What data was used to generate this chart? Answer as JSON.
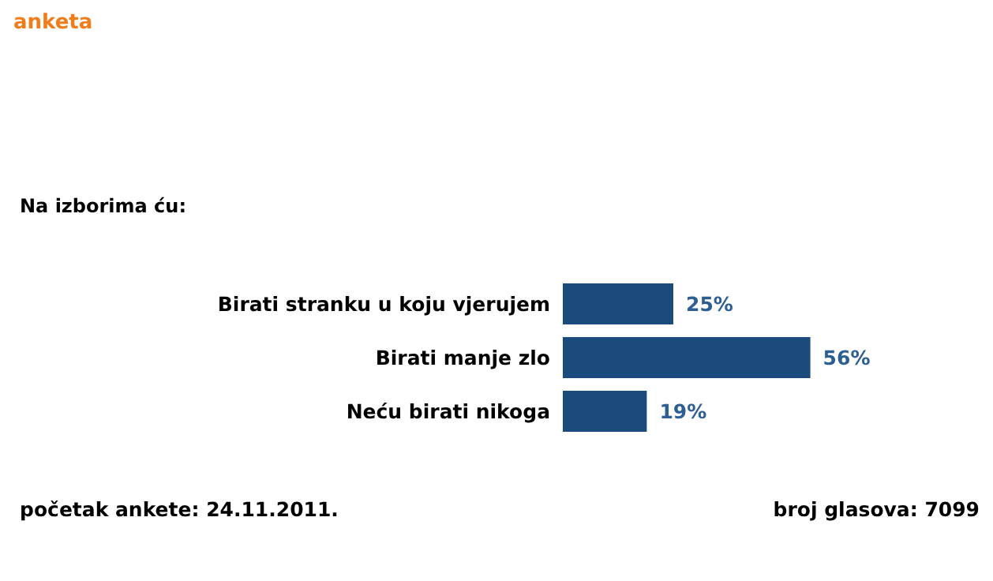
{
  "chart_data": {
    "type": "bar",
    "orientation": "horizontal",
    "subtitle": "anketa",
    "title": "Na izborima ću:",
    "categories": [
      "Birati stranku u koju vjerujem",
      "Birati manje zlo",
      "Neću birati nikoga"
    ],
    "values": [
      25,
      56,
      19
    ],
    "value_labels": [
      "25%",
      "56%",
      "19%"
    ],
    "color": "#1b4a7c",
    "annotations": [
      "početak ankete: 24.11.2011.",
      "broj glasova: 7099"
    ]
  }
}
